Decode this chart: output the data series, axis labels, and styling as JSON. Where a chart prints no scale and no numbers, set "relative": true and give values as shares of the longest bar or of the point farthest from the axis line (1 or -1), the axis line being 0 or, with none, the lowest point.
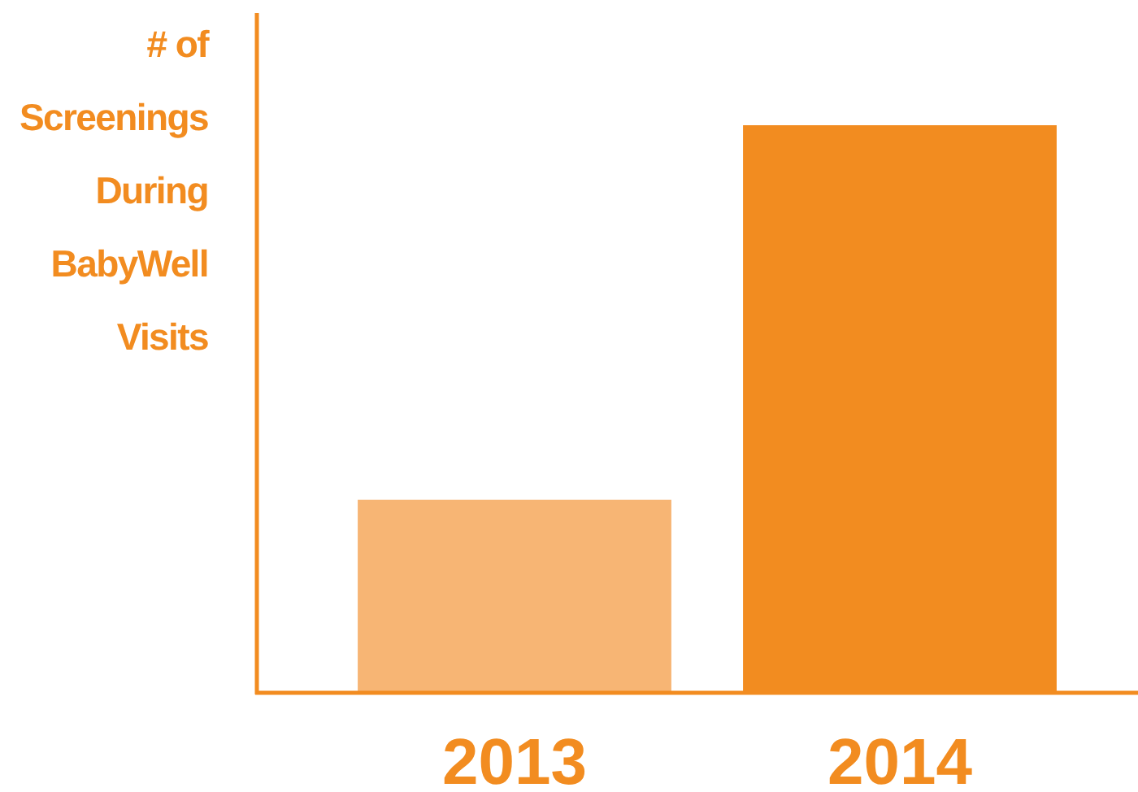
{
  "chart_data": {
    "type": "bar",
    "ylabel": "# of Screenings During BabyWell Visits",
    "categories": [
      "2013",
      "2014"
    ],
    "values": [
      0.34,
      1
    ],
    "colors": [
      "#f7b574",
      "#f28c20"
    ],
    "relative": true
  }
}
